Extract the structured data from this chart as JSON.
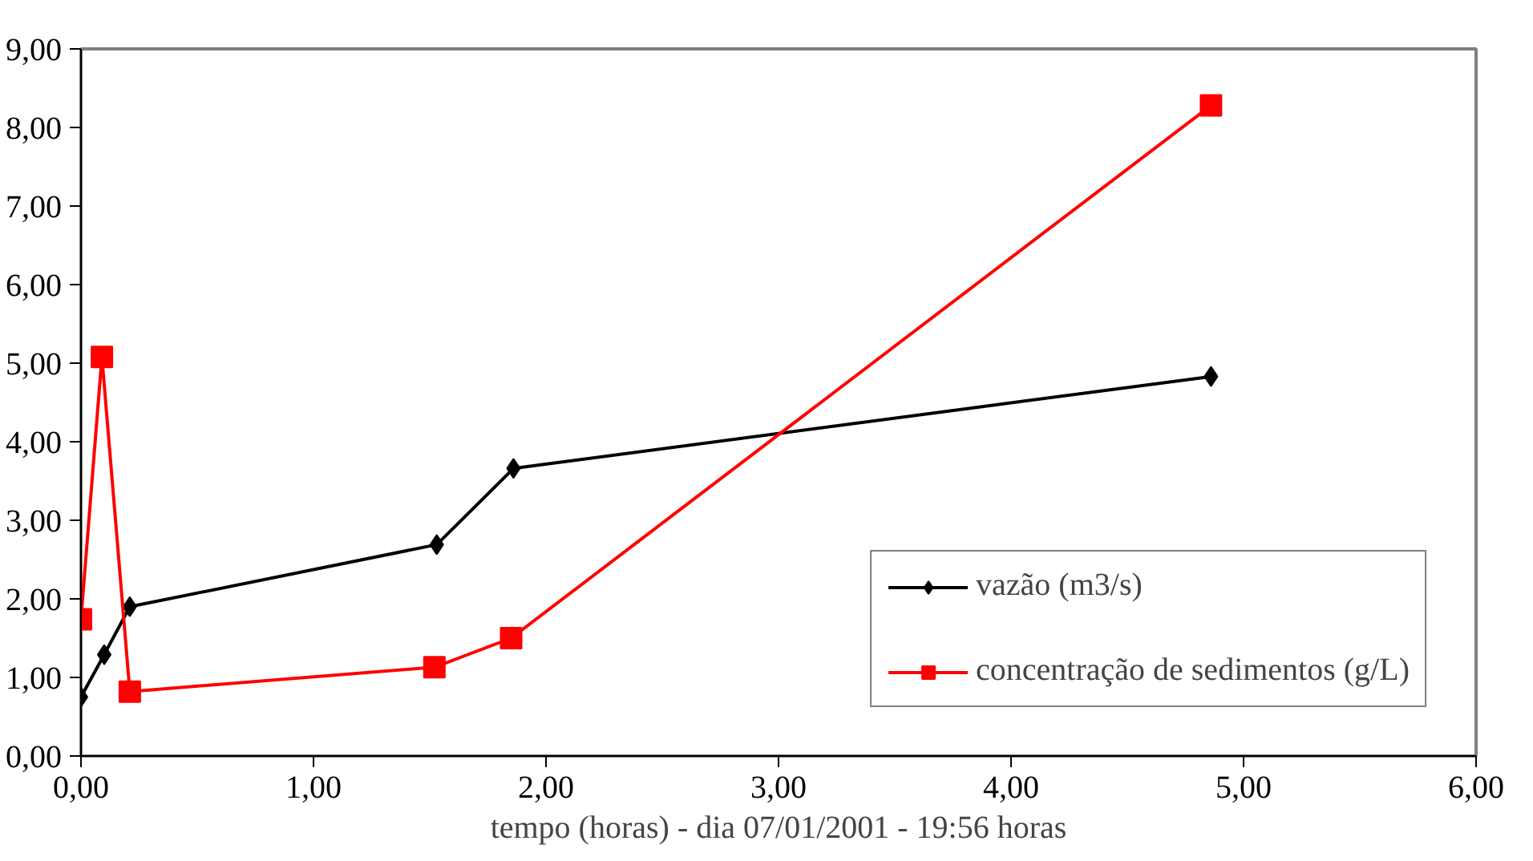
{
  "chart_data": {
    "type": "line",
    "xlabel": "tempo (horas) - dia 07/01/2001 - 19:56 horas",
    "xlim": [
      0,
      6
    ],
    "xticks": [
      {
        "value": 0,
        "label": "0,00"
      },
      {
        "value": 1,
        "label": "1,00"
      },
      {
        "value": 2,
        "label": "2,00"
      },
      {
        "value": 3,
        "label": "3,00"
      },
      {
        "value": 4,
        "label": "4,00"
      },
      {
        "value": 5,
        "label": "5,00"
      },
      {
        "value": 6,
        "label": "6,00"
      }
    ],
    "ylim": [
      0,
      9
    ],
    "yticks": [
      {
        "value": 0,
        "label": "0,00"
      },
      {
        "value": 1,
        "label": "1,00"
      },
      {
        "value": 2,
        "label": "2,00"
      },
      {
        "value": 3,
        "label": "3,00"
      },
      {
        "value": 4,
        "label": "4,00"
      },
      {
        "value": 5,
        "label": "5,00"
      },
      {
        "value": 6,
        "label": "6,00"
      },
      {
        "value": 7,
        "label": "7,00"
      },
      {
        "value": 8,
        "label": "8,00"
      },
      {
        "value": 9,
        "label": "9,00"
      }
    ],
    "grid": false,
    "legend": "bottom right",
    "series": [
      {
        "name": "vazão (m3/s)",
        "color": "#000000",
        "marker": "diamond",
        "x": [
          0,
          0.1,
          0.21,
          1.53,
          1.86,
          4.86
        ],
        "values": [
          0.75,
          1.29,
          1.9,
          2.69,
          3.66,
          4.83
        ]
      },
      {
        "name": "concentração de sedimentos (g/L)",
        "color": "#ff0000",
        "marker": "square",
        "x": [
          0,
          0.09,
          0.21,
          1.52,
          1.85,
          4.86
        ],
        "values": [
          1.74,
          5.08,
          0.82,
          1.13,
          1.5,
          8.28
        ]
      }
    ]
  }
}
